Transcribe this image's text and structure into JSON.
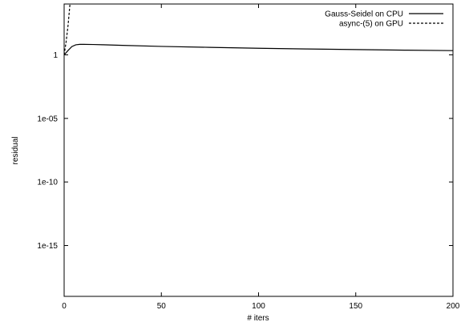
{
  "chart_data": {
    "type": "line",
    "xlabel": "# iters",
    "ylabel": "residual",
    "xlim": [
      0,
      200
    ],
    "ylim": [
      1e-19,
      10000
    ],
    "yscale": "log",
    "xticks": [
      {
        "value": 0,
        "label": "0"
      },
      {
        "value": 50,
        "label": "50"
      },
      {
        "value": 100,
        "label": "100"
      },
      {
        "value": 150,
        "label": "150"
      },
      {
        "value": 200,
        "label": "200"
      }
    ],
    "yticks": [
      {
        "value": 1,
        "label": "1"
      },
      {
        "value": 1e-05,
        "label": "1e-05"
      },
      {
        "value": 1e-10,
        "label": "1e-10"
      },
      {
        "value": 1e-15,
        "label": "1e-15"
      }
    ],
    "legend_position": "top-right",
    "grid": false,
    "series": [
      {
        "name": "Gauss-Seidel on CPU",
        "style": "solid",
        "color": "#000000",
        "x": [
          0,
          2,
          4,
          6,
          8,
          10,
          15,
          20,
          30,
          50,
          75,
          100,
          125,
          150,
          175,
          200
        ],
        "y": [
          1,
          2.2,
          4.5,
          6.2,
          6.7,
          6.7,
          6.5,
          6.2,
          5.6,
          4.6,
          3.9,
          3.3,
          2.9,
          2.6,
          2.35,
          2.15
        ]
      },
      {
        "name": "async-(5) on GPU",
        "style": "dashed",
        "color": "#000000",
        "x": [
          0,
          1,
          2,
          3
        ],
        "y": [
          1,
          10,
          200,
          10000
        ]
      }
    ]
  }
}
